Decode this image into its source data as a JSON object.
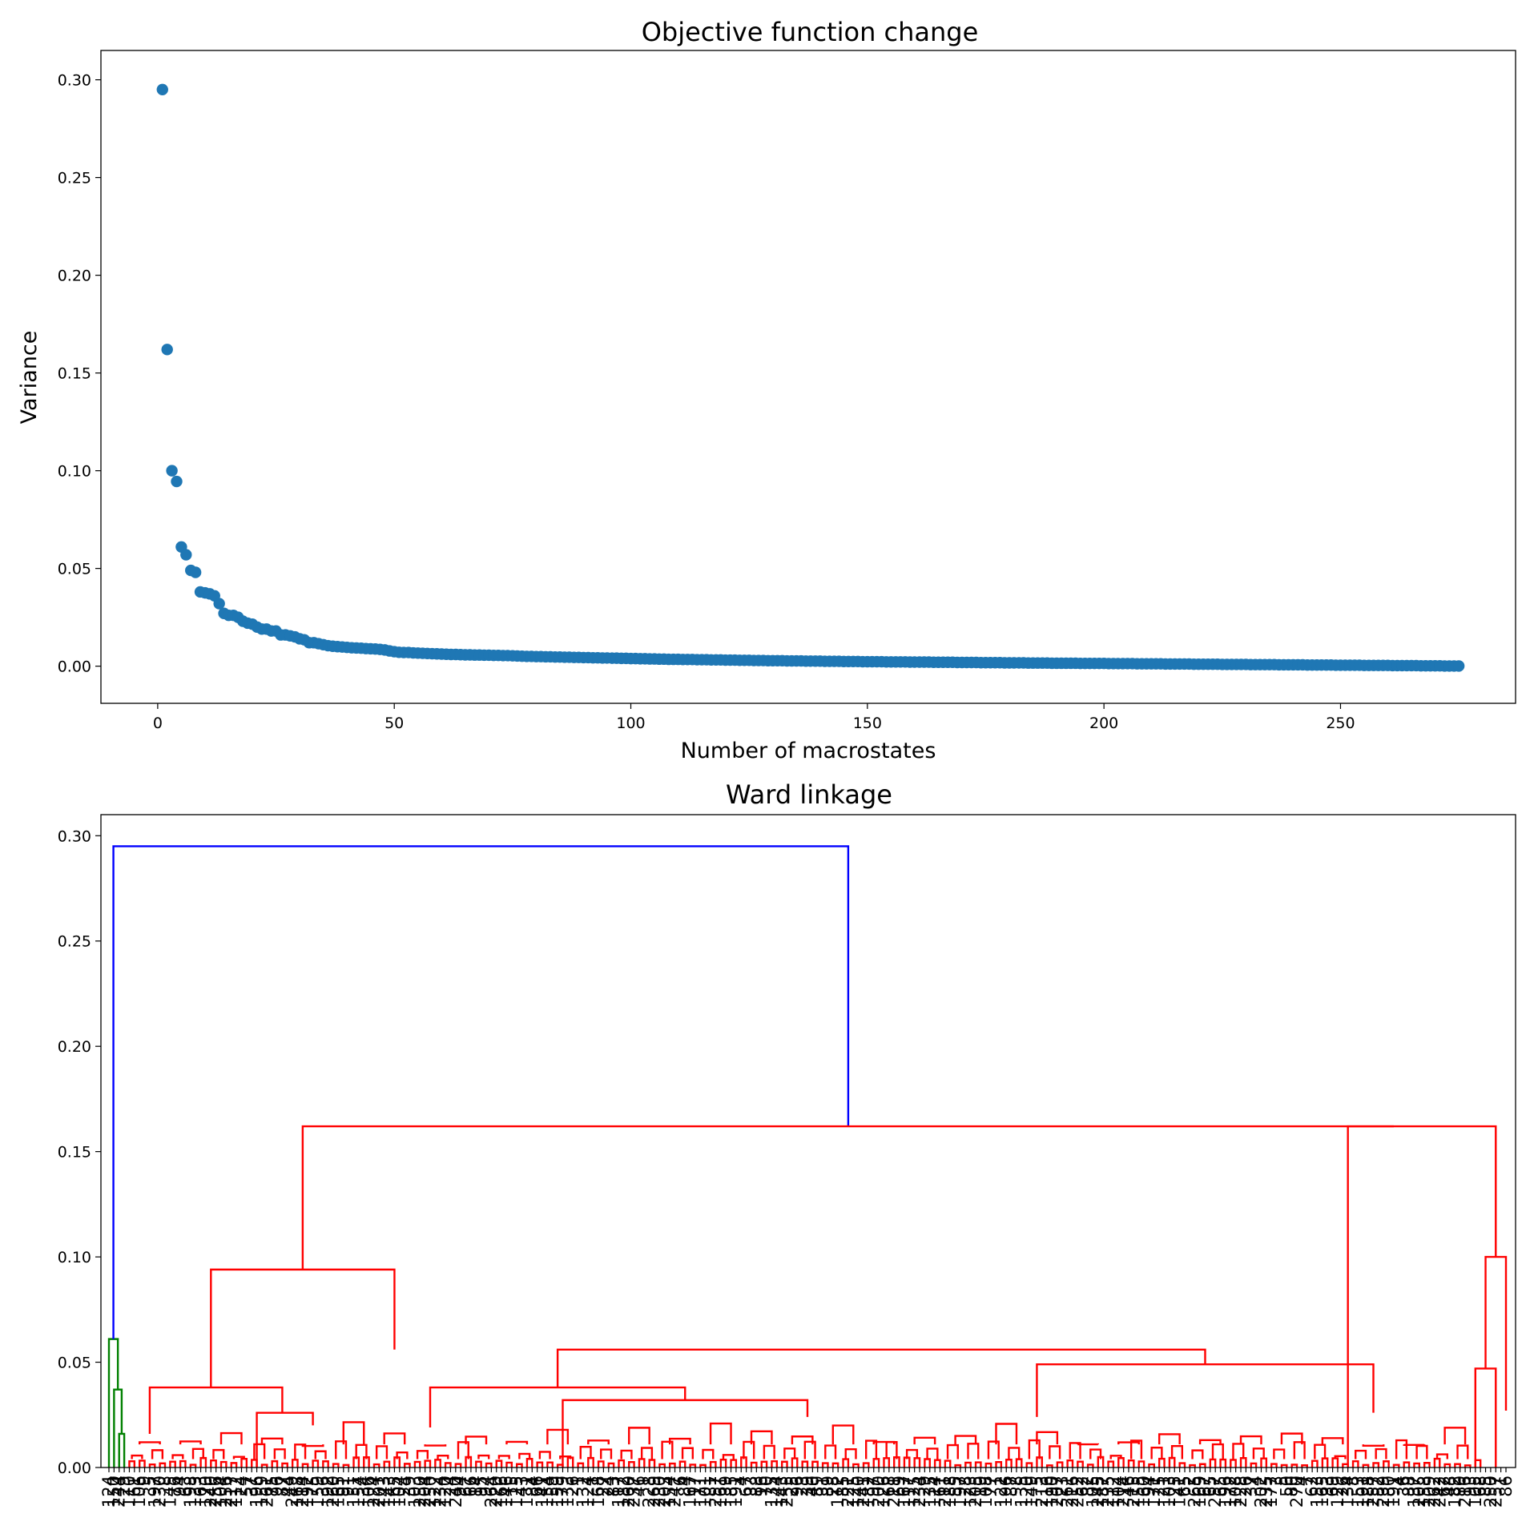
{
  "colors": {
    "scatter_marker": "#1f77b4",
    "cluster_red": "#ff0000",
    "cluster_green": "#008000",
    "root_blue": "#0000ff"
  },
  "chart_data": [
    {
      "type": "scatter",
      "title": "Objective function change",
      "xlabel": "Number of macrostates",
      "ylabel": "Variance",
      "xlim": [
        -12,
        287
      ],
      "ylim": [
        -0.019,
        0.315
      ],
      "xticks": [
        0,
        50,
        100,
        150,
        200,
        250
      ],
      "xtick_labels": [
        "0",
        "50",
        "100",
        "150",
        "200",
        "250"
      ],
      "yticks": [
        0.0,
        0.05,
        0.1,
        0.15,
        0.2,
        0.25,
        0.3
      ],
      "ytick_labels": [
        "0.00",
        "0.05",
        "0.10",
        "0.15",
        "0.20",
        "0.25",
        "0.30"
      ],
      "grid": false,
      "marker_color": "#1f77b4",
      "series": [
        {
          "x_start": 1,
          "x_step": 1,
          "values": [
            0.295,
            0.162,
            0.1,
            0.0945,
            0.061,
            0.057,
            0.049,
            0.048,
            0.038,
            0.0375,
            0.037,
            0.036,
            0.032,
            0.027,
            0.026,
            0.026,
            0.025,
            0.023,
            0.022,
            0.0215,
            0.02,
            0.019,
            0.019,
            0.018,
            0.018,
            0.016,
            0.016,
            0.0155,
            0.015,
            0.014,
            0.0135,
            0.012,
            0.012,
            0.0115,
            0.011,
            0.0105,
            0.0102,
            0.01,
            0.0098,
            0.0096,
            0.0094,
            0.0093,
            0.0092,
            0.009,
            0.0089,
            0.0088,
            0.0086,
            0.0083,
            0.0078,
            0.0074,
            0.0071,
            0.007,
            0.007,
            0.0068,
            0.0067,
            0.0066,
            0.0065,
            0.0064,
            0.0063,
            0.0062,
            0.0061,
            0.006,
            0.006,
            0.0059,
            0.0058,
            0.0058,
            0.0057,
            0.0057,
            0.0056,
            0.0056,
            0.0055,
            0.0055,
            0.0054,
            0.0054,
            0.0053,
            0.0052,
            0.0051,
            0.005,
            0.005,
            0.0049,
            0.0049,
            0.0048,
            0.0048,
            0.0047,
            0.0047,
            0.0046,
            0.0046,
            0.0045,
            0.0045,
            0.0044,
            0.0044,
            0.0043,
            0.0043,
            0.0042,
            0.0042,
            0.0041,
            0.0041,
            0.004,
            0.004,
            0.0039,
            0.0039,
            0.0038,
            0.0038,
            0.0037,
            0.0037,
            0.0036,
            0.0036,
            0.0035,
            0.0035,
            0.0035,
            0.0034,
            0.0034,
            0.0034,
            0.0033,
            0.0033,
            0.0033,
            0.0032,
            0.0032,
            0.0032,
            0.0031,
            0.0031,
            0.0031,
            0.003,
            0.003,
            0.003,
            0.0029,
            0.0029,
            0.0029,
            0.0028,
            0.0028,
            0.0028,
            0.0028,
            0.0027,
            0.0027,
            0.0027,
            0.0027,
            0.0026,
            0.0026,
            0.0026,
            0.0026,
            0.0025,
            0.0025,
            0.0025,
            0.0025,
            0.0024,
            0.0024,
            0.0024,
            0.0024,
            0.0023,
            0.0023,
            0.0023,
            0.0023,
            0.0023,
            0.0022,
            0.0022,
            0.0022,
            0.0022,
            0.0022,
            0.0021,
            0.0021,
            0.0021,
            0.0021,
            0.0021,
            0.002,
            0.002,
            0.002,
            0.002,
            0.002,
            0.0019,
            0.0019,
            0.0019,
            0.0019,
            0.0019,
            0.0018,
            0.0018,
            0.0018,
            0.0018,
            0.0018,
            0.0017,
            0.0017,
            0.0017,
            0.0017,
            0.0017,
            0.0016,
            0.0016,
            0.0016,
            0.0016,
            0.0016,
            0.0015,
            0.0015,
            0.0015,
            0.0015,
            0.0015,
            0.0015,
            0.0014,
            0.0014,
            0.0014,
            0.0014,
            0.0014,
            0.0014,
            0.0013,
            0.0013,
            0.0013,
            0.0013,
            0.0013,
            0.0013,
            0.0012,
            0.0012,
            0.0012,
            0.0012,
            0.0012,
            0.0012,
            0.0011,
            0.0011,
            0.0011,
            0.0011,
            0.0011,
            0.0011,
            0.001,
            0.001,
            0.001,
            0.001,
            0.001,
            0.001,
            0.0009,
            0.0009,
            0.0009,
            0.0009,
            0.0009,
            0.0009,
            0.0008,
            0.0008,
            0.0008,
            0.0008,
            0.0008,
            0.0008,
            0.0007,
            0.0007,
            0.0007,
            0.0007,
            0.0007,
            0.0007,
            0.0006,
            0.0006,
            0.0006,
            0.0006,
            0.0006,
            0.0006,
            0.0005,
            0.0005,
            0.0005,
            0.0005,
            0.0005,
            0.0005,
            0.0004,
            0.0004,
            0.0004,
            0.0004,
            0.0004,
            0.0004,
            0.0003,
            0.0003,
            0.0003,
            0.0003,
            0.0003,
            0.0003,
            0.0002,
            0.0002,
            0.0002,
            0.0002,
            0.0002,
            0.0001,
            0.0001,
            0.0001,
            0.0001
          ]
        }
      ]
    },
    {
      "type": "dendrogram",
      "title": "Ward linkage",
      "xlabel": "",
      "ylabel": "",
      "ylim": [
        0,
        0.31
      ],
      "yticks": [
        0.0,
        0.05,
        0.1,
        0.15,
        0.2,
        0.25,
        0.3
      ],
      "ytick_labels": [
        "0.00",
        "0.05",
        "0.10",
        "0.15",
        "0.20",
        "0.25",
        "0.30"
      ],
      "grid": false,
      "leaf_count": 275,
      "leaf_labels_legible": false,
      "links": [
        {
          "x": [
            2,
            2,
            3,
            3
          ],
          "y": [
            0.0,
            0.016,
            0.016,
            0.0
          ],
          "color": "green"
        },
        {
          "x": [
            1,
            1,
            2.5,
            2.5
          ],
          "y": [
            0.0,
            0.037,
            0.037,
            0.016
          ],
          "color": "green"
        },
        {
          "x": [
            0,
            0,
            1.75,
            1.75
          ],
          "y": [
            0.0,
            0.061,
            0.061,
            0.037
          ],
          "color": "green"
        },
        {
          "x": [
            0.875,
            0.875,
            145,
            145
          ],
          "y": [
            0.061,
            0.295,
            0.295,
            0.162
          ],
          "color": "blue"
        },
        {
          "x": [
            38,
            38,
            252,
            252
          ],
          "y": [
            0.094,
            0.162,
            0.162,
            0.162
          ],
          "color": "red"
        },
        {
          "x": [
            243,
            243,
            272,
            272
          ],
          "y": [
            0.0,
            0.162,
            0.162,
            0.1
          ],
          "color": "red"
        },
        {
          "x": [
            270,
            270,
            274,
            274
          ],
          "y": [
            0.047,
            0.1,
            0.1,
            0.027
          ],
          "color": "red"
        },
        {
          "x": [
            268,
            268,
            272,
            272
          ],
          "y": [
            0.0,
            0.047,
            0.047,
            0.0
          ],
          "color": "red"
        },
        {
          "x": [
            20,
            20,
            56,
            56
          ],
          "y": [
            0.038,
            0.094,
            0.094,
            0.056
          ],
          "color": "red"
        },
        {
          "x": [
            8,
            8,
            34,
            34
          ],
          "y": [
            0.016,
            0.038,
            0.038,
            0.026
          ],
          "color": "red"
        },
        {
          "x": [
            29,
            29,
            40,
            40
          ],
          "y": [
            0.0,
            0.026,
            0.026,
            0.02
          ],
          "color": "red"
        },
        {
          "x": [
            88,
            88,
            215,
            215
          ],
          "y": [
            0.038,
            0.056,
            0.056,
            0.049
          ],
          "color": "red"
        },
        {
          "x": [
            63,
            63,
            113,
            113
          ],
          "y": [
            0.019,
            0.038,
            0.038,
            0.032
          ],
          "color": "red"
        },
        {
          "x": [
            89,
            89,
            137,
            137
          ],
          "y": [
            0.0,
            0.032,
            0.032,
            0.024
          ],
          "color": "red"
        },
        {
          "x": [
            182,
            182,
            248,
            248
          ],
          "y": [
            0.024,
            0.049,
            0.049,
            0.026
          ],
          "color": "red"
        }
      ]
    }
  ]
}
